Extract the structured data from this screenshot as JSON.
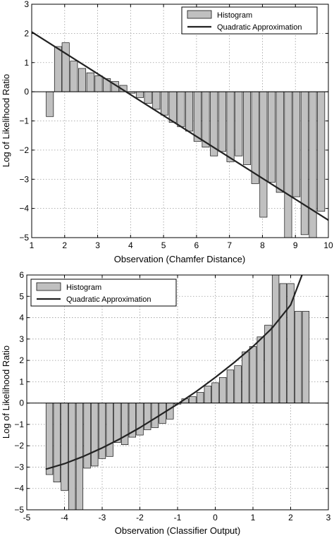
{
  "chart_data": [
    {
      "type": "bar",
      "xlabel": "Observation (Chamfer Distance)",
      "ylabel": "Log of Likelihood Ratio",
      "xlim": [
        1,
        10
      ],
      "ylim": [
        -5,
        3
      ],
      "xticks": [
        1,
        2,
        3,
        4,
        5,
        6,
        7,
        8,
        9,
        10
      ],
      "yticks": [
        -5,
        -4,
        -3,
        -2,
        -1,
        0,
        1,
        2,
        3
      ],
      "grid": true,
      "legend_position": "top-right",
      "bar_width": 0.22,
      "series": [
        {
          "name": "Histogram",
          "kind": "bar",
          "color": "#c0c0c0",
          "x": [
            1.55,
            1.8,
            2.03,
            2.28,
            2.53,
            2.78,
            3.03,
            3.28,
            3.53,
            3.78,
            4.03,
            4.28,
            4.53,
            4.78,
            5.03,
            5.28,
            5.53,
            5.78,
            6.03,
            6.28,
            6.53,
            6.78,
            7.03,
            7.28,
            7.53,
            7.78,
            8.03,
            8.28,
            8.53,
            8.78,
            9.03,
            9.28,
            9.53,
            9.78
          ],
          "values": [
            -0.85,
            1.55,
            1.68,
            1.05,
            0.8,
            0.65,
            0.55,
            0.45,
            0.35,
            0.22,
            -0.05,
            -0.2,
            -0.4,
            -0.6,
            -0.8,
            -1.05,
            -1.2,
            -1.35,
            -1.7,
            -1.9,
            -2.2,
            -2.05,
            -2.4,
            -2.2,
            -2.5,
            -3.15,
            -4.3,
            -3.1,
            -3.45,
            -5.0,
            -3.6,
            -4.9,
            -5.0,
            -4.1
          ]
        },
        {
          "name": "Quadratic Approximation",
          "kind": "line",
          "color": "#222222",
          "x": [
            1,
            10
          ],
          "values": [
            2.05,
            -4.4
          ]
        }
      ]
    },
    {
      "type": "bar",
      "xlabel": "Observation (Classifier Output)",
      "ylabel": "Log of Likelihood Ratio",
      "xlim": [
        -5,
        3
      ],
      "ylim": [
        -5,
        6
      ],
      "xticks": [
        -5,
        -4,
        -3,
        -2,
        -1,
        0,
        1,
        2,
        3
      ],
      "yticks": [
        -5,
        -4,
        -3,
        -2,
        -1,
        0,
        1,
        2,
        3,
        4,
        5,
        6
      ],
      "grid": true,
      "legend_position": "top-left",
      "bar_width": 0.18,
      "series": [
        {
          "name": "Histogram",
          "kind": "bar",
          "color": "#c0c0c0",
          "x": [
            -4.4,
            -4.2,
            -4.0,
            -3.8,
            -3.6,
            -3.4,
            -3.2,
            -3.0,
            -2.8,
            -2.6,
            -2.4,
            -2.2,
            -2.0,
            -1.8,
            -1.6,
            -1.4,
            -1.2,
            -1.0,
            -0.8,
            -0.6,
            -0.4,
            -0.2,
            0.0,
            0.2,
            0.4,
            0.6,
            0.8,
            1.0,
            1.2,
            1.4,
            1.6,
            1.8,
            2.0,
            2.2,
            2.4
          ],
          "values": [
            -3.35,
            -3.7,
            -4.1,
            -5.0,
            -5.0,
            -3.05,
            -2.95,
            -2.6,
            -2.5,
            -1.85,
            -1.95,
            -1.6,
            -1.5,
            -1.25,
            -1.15,
            -0.95,
            -0.75,
            -0.05,
            0.2,
            0.3,
            0.5,
            0.8,
            0.95,
            1.2,
            1.55,
            1.75,
            2.4,
            2.65,
            3.1,
            3.65,
            6.0,
            5.6,
            5.6,
            4.3,
            4.3
          ]
        },
        {
          "name": "Quadratic Approximation",
          "kind": "line",
          "color": "#222222",
          "x": [
            -4.5,
            -4.0,
            -3.5,
            -3.0,
            -2.5,
            -2.0,
            -1.5,
            -1.0,
            -0.5,
            0.0,
            0.5,
            1.0,
            1.5,
            2.0,
            2.3
          ],
          "values": [
            -3.1,
            -2.84,
            -2.5,
            -2.1,
            -1.65,
            -1.15,
            -0.6,
            -0.05,
            0.55,
            1.2,
            1.9,
            2.65,
            3.5,
            4.6,
            6.0
          ]
        }
      ]
    }
  ]
}
